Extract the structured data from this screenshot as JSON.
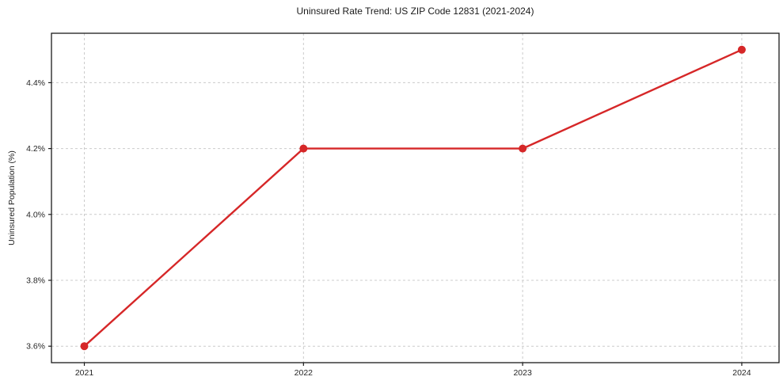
{
  "chart_data": {
    "type": "line",
    "title": "Uninsured Rate Trend: US ZIP Code 12831 (2021-2024)",
    "xlabel": "",
    "ylabel": "Uninsured Population (%)",
    "x": [
      2021,
      2022,
      2023,
      2024
    ],
    "series": [
      {
        "name": "Uninsured Rate",
        "values": [
          3.6,
          4.2,
          4.2,
          4.5
        ]
      }
    ],
    "xticks": [
      2021,
      2022,
      2023,
      2024
    ],
    "xtick_labels": [
      "2021",
      "2022",
      "2023",
      "2024"
    ],
    "yticks": [
      3.6,
      3.8,
      4.0,
      4.2,
      4.4
    ],
    "ytick_labels": [
      "3.6%",
      "3.8%",
      "4.0%",
      "4.2%",
      "4.4%"
    ],
    "xlim": [
      2020.85,
      2024.17
    ],
    "ylim": [
      3.55,
      4.55
    ],
    "grid": true,
    "legend": "none",
    "line_color": "#d62728",
    "grid_color": "#cccccc",
    "spine_color": "#1a1a1a",
    "marker": "circle"
  }
}
